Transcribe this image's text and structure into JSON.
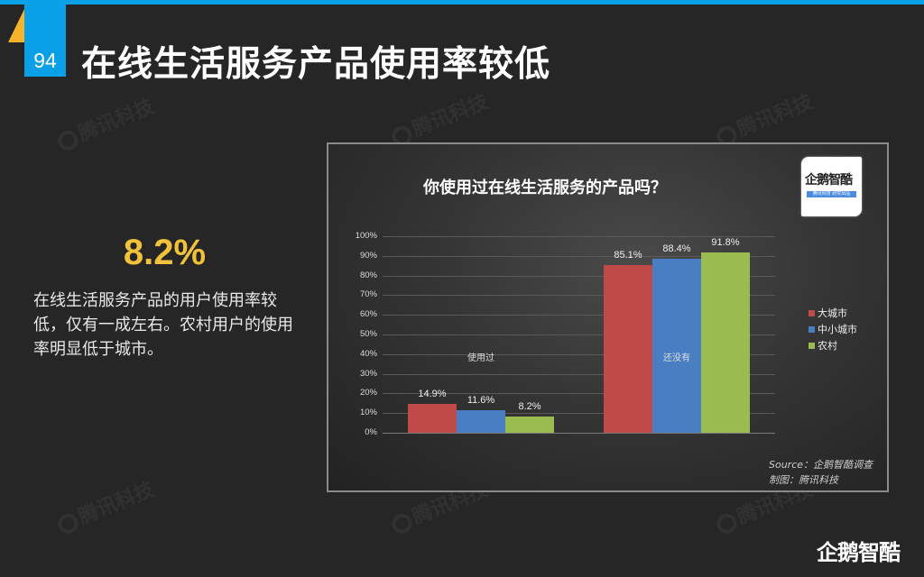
{
  "header": {
    "page_number": "94",
    "title": "在线生活服务产品使用率较低"
  },
  "highlight": {
    "value": "8.2%",
    "description": "在线生活服务产品的用户使用率较低，仅有一成左右。农村用户的使用率明显低于城市。"
  },
  "watermark": "腾讯科技",
  "footer": {
    "logo": "企鹅智酷"
  },
  "colors": {
    "accent": "#0aa0e8",
    "highlight": "#f2c23a",
    "series": [
      "#c0494a",
      "#4a7ec2",
      "#9abb50"
    ]
  },
  "chart": {
    "logo_text": "企鹅智酷",
    "logo_subtitle": "腾讯科技 研究出品",
    "source": "Source：企鹅智酷调查",
    "made_by": "制图：腾讯科技"
  },
  "chart_data": {
    "type": "bar",
    "title": "你使用过在线生活服务的产品吗？",
    "categories": [
      "使用过",
      "还没有"
    ],
    "series": [
      {
        "name": "大城市",
        "color": "#c0494a",
        "values": [
          14.9,
          85.1
        ]
      },
      {
        "name": "中小城市",
        "color": "#4a7ec2",
        "values": [
          11.6,
          88.4
        ]
      },
      {
        "name": "农村",
        "color": "#9abb50",
        "values": [
          8.2,
          91.8
        ]
      }
    ],
    "data_labels": [
      [
        "14.9%",
        "85.1%"
      ],
      [
        "11.6%",
        "88.4%"
      ],
      [
        "8.2%",
        "91.8%"
      ]
    ],
    "yticks": [
      "0%",
      "10%",
      "20%",
      "30%",
      "40%",
      "50%",
      "60%",
      "70%",
      "80%",
      "90%",
      "100%"
    ],
    "ylim": [
      0,
      100
    ],
    "xlabel": "",
    "ylabel": "",
    "grid": true,
    "legend_position": "right"
  }
}
